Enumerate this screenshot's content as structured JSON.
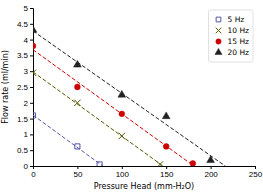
{
  "chart_data": {
    "type": "scatter",
    "xlabel": "Pressure Head (mm-H₂O)",
    "ylabel": "Flow rate (ml/min)",
    "xlim": [
      0,
      250
    ],
    "ylim": [
      0,
      5
    ],
    "xticks": [
      0,
      50,
      100,
      150,
      200,
      250
    ],
    "yticks": [
      0,
      0.5,
      1,
      1.5,
      2,
      2.5,
      3,
      3.5,
      4,
      4.5,
      5
    ],
    "grid": false,
    "legend": "upper right",
    "series": [
      {
        "name": "5 Hz",
        "color": "#5555aa",
        "marker": "square-open",
        "line_style": "dashed",
        "x": [
          0,
          50,
          75
        ],
        "values": [
          1.6,
          0.62,
          0.05
        ],
        "trend_x": [
          0,
          78.55
        ],
        "trend_values": [
          1.611,
          0
        ]
      },
      {
        "name": "10 Hz",
        "color": "#555500",
        "marker": "x",
        "line_style": "dashed",
        "x": [
          0,
          50,
          100,
          143
        ],
        "values": [
          2.95,
          2.0,
          0.95,
          0.05
        ],
        "trend_x": [
          0,
          146.37
        ],
        "trend_values": [
          2.978,
          0
        ]
      },
      {
        "name": "15 Hz",
        "color": "#cc0000",
        "marker": "circle",
        "line_style": "dashed",
        "x": [
          0,
          50,
          100,
          150,
          180
        ],
        "values": [
          3.8,
          2.5,
          1.65,
          0.62,
          0.08
        ],
        "trend_x": [
          0,
          181.18
        ],
        "trend_values": [
          3.68,
          0
        ]
      },
      {
        "name": "20 Hz",
        "color": "#222222",
        "marker": "triangle",
        "line_style": "dashed",
        "x": [
          0,
          50,
          100,
          150,
          200
        ],
        "values": [
          4.3,
          3.2,
          2.25,
          1.57,
          0.18
        ],
        "trend_x": [
          0,
          216.51
        ],
        "trend_values": [
          4.274,
          0
        ]
      }
    ]
  }
}
